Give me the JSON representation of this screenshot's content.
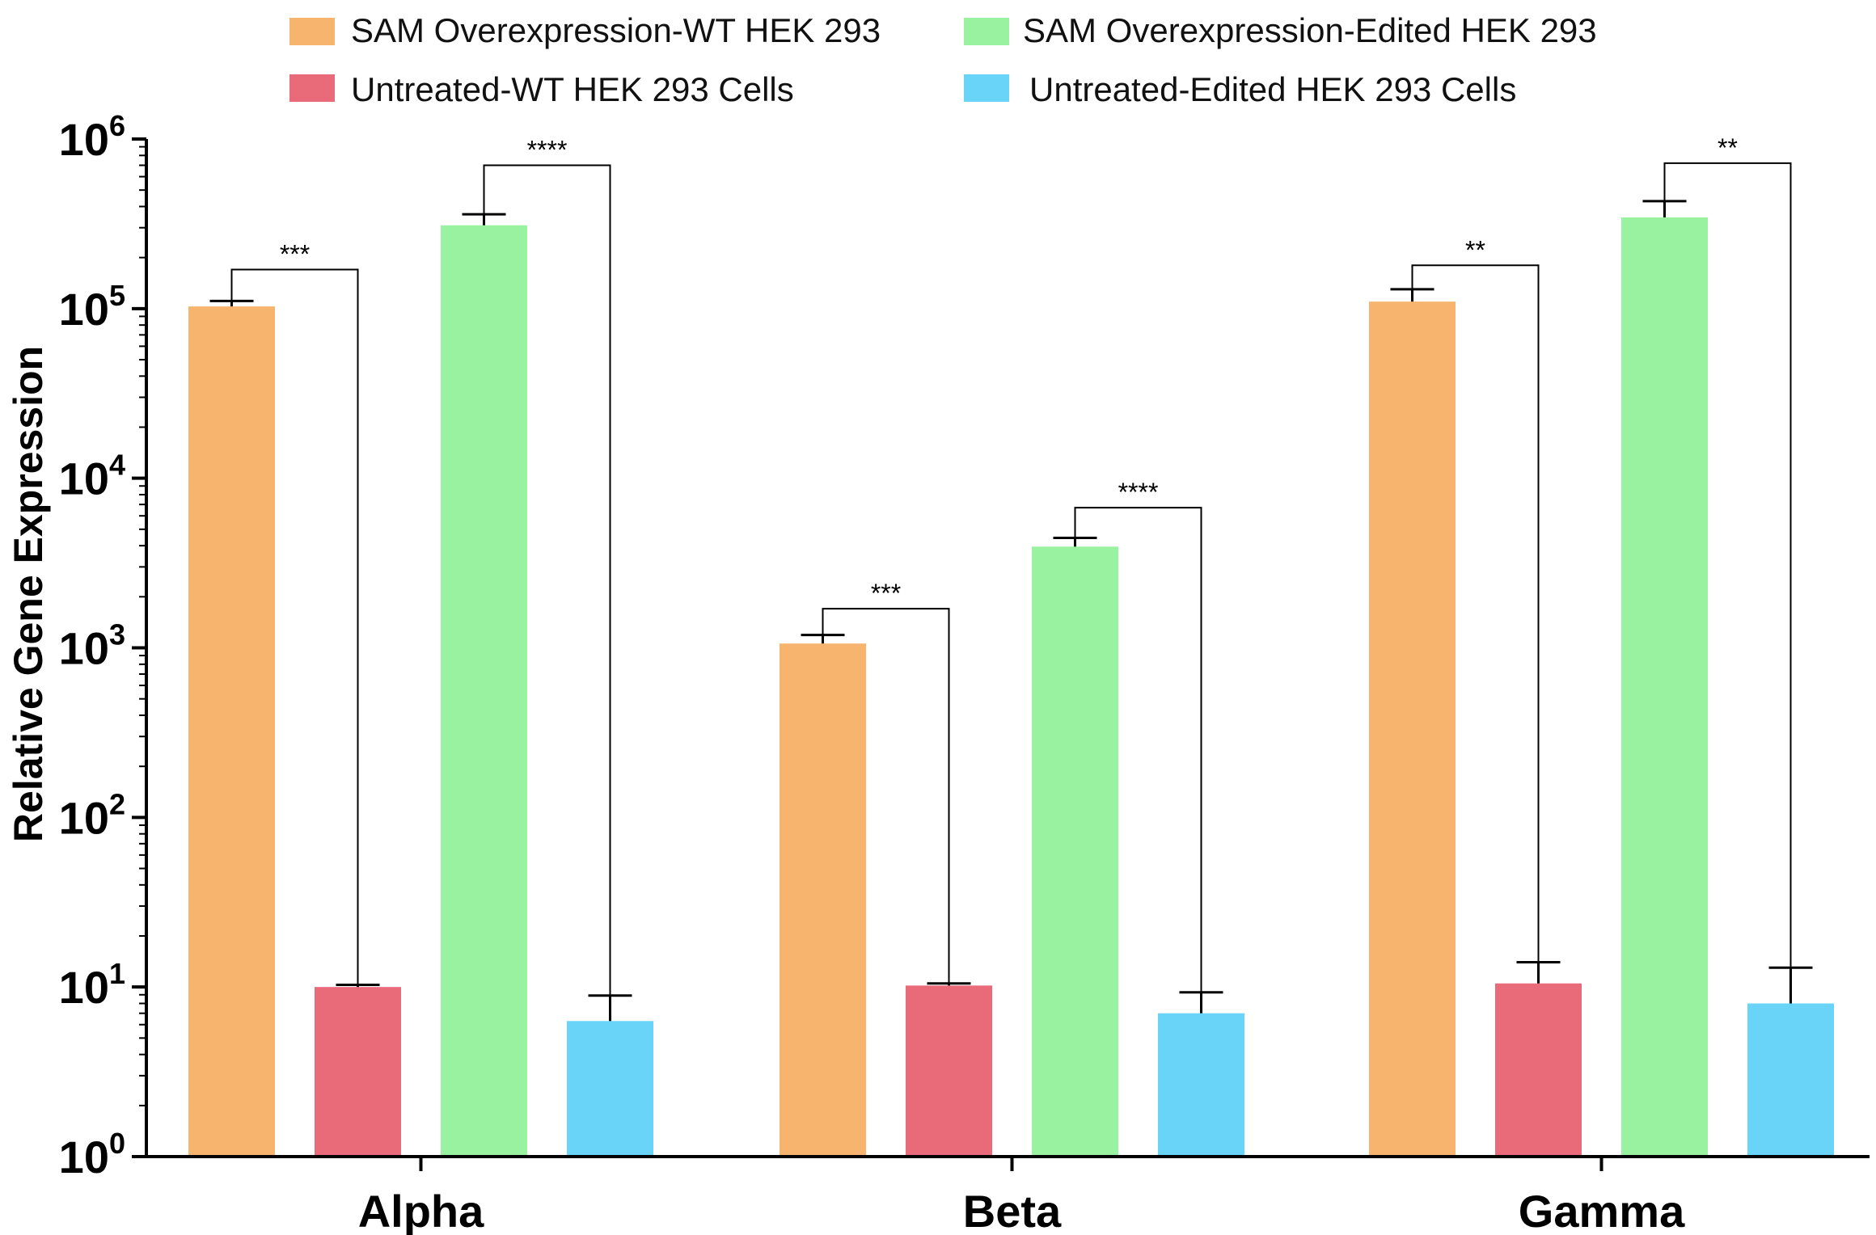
{
  "chart_data": {
    "type": "bar",
    "title": "",
    "xlabel": "",
    "ylabel": "Relative Gene Expression",
    "yscale": "log",
    "ylim": [
      1,
      1000000
    ],
    "y_tick_exponents": [
      "0",
      "1",
      "2",
      "3",
      "4",
      "5",
      "6"
    ],
    "y_tick_base": "10",
    "categories": [
      "Alpha",
      "Beta",
      "Gamma"
    ],
    "legend_position": "top",
    "series": [
      {
        "name": "SAM Overexpression-WT HEK 293",
        "color": "#f7b46e",
        "values": [
          103000,
          1060,
          110000
        ],
        "error": [
          8000,
          130,
          20000
        ]
      },
      {
        "name": "Untreated-WT HEK 293 Cells",
        "color": "#e96b7a",
        "values": [
          10,
          10.2,
          10.5
        ],
        "error": [
          0.3,
          0.3,
          3.5
        ]
      },
      {
        "name": "SAM Overexpression-Edited HEK 293",
        "color": "#98f29f",
        "values": [
          310000,
          3950,
          345000
        ],
        "error": [
          50000,
          500,
          85000
        ]
      },
      {
        "name": "Untreated-Edited HEK 293 Cells",
        "color": "#6ad4f8",
        "values": [
          6.3,
          7,
          8
        ],
        "error": [
          2.6,
          2.3,
          5
        ]
      }
    ],
    "significance": [
      {
        "category": 0,
        "from_series": 0,
        "to_series": 1,
        "label": "***",
        "level": 170000
      },
      {
        "category": 0,
        "from_series": 2,
        "to_series": 3,
        "label": "****",
        "level": 700000
      },
      {
        "category": 1,
        "from_series": 0,
        "to_series": 1,
        "label": "***",
        "level": 1700
      },
      {
        "category": 1,
        "from_series": 2,
        "to_series": 3,
        "label": "****",
        "level": 6700
      },
      {
        "category": 2,
        "from_series": 0,
        "to_series": 1,
        "label": "**",
        "level": 180000
      },
      {
        "category": 2,
        "from_series": 2,
        "to_series": 3,
        "label": "**",
        "level": 720000
      }
    ]
  }
}
